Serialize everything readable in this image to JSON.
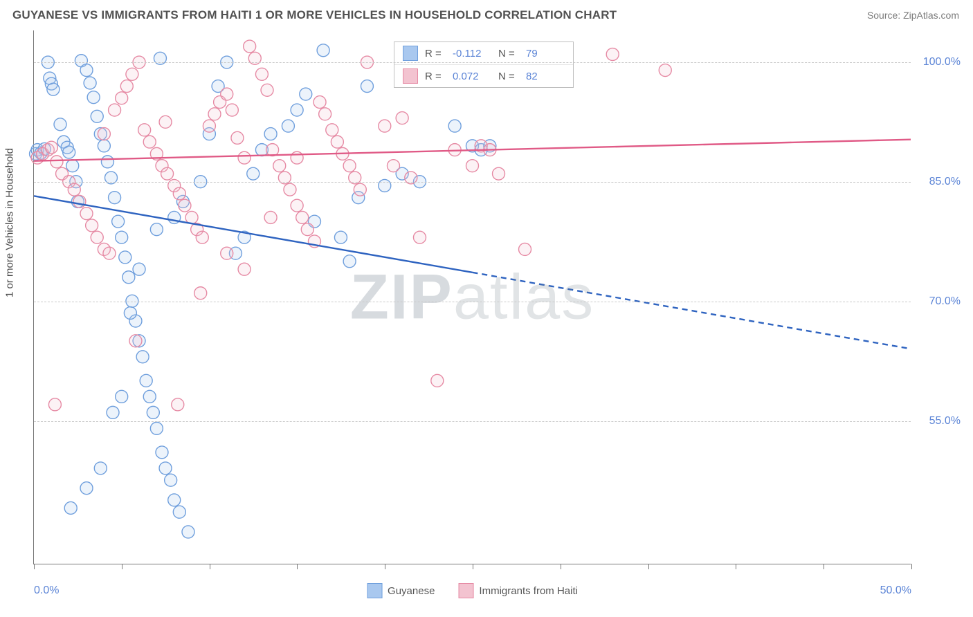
{
  "title": "GUYANESE VS IMMIGRANTS FROM HAITI 1 OR MORE VEHICLES IN HOUSEHOLD CORRELATION CHART",
  "source": "Source: ZipAtlas.com",
  "ylabel": "1 or more Vehicles in Household",
  "watermark_bold": "ZIP",
  "watermark_rest": "atlas",
  "chart": {
    "type": "scatter-with-regression",
    "background_color": "#ffffff",
    "grid_color": "#c9c9c9",
    "axis_color": "#777777",
    "text_color": "#515151",
    "value_color": "#5b84d6",
    "xlim": [
      0,
      50
    ],
    "ylim": [
      37,
      104
    ],
    "y_ticks": [
      55.0,
      70.0,
      85.0,
      100.0
    ],
    "y_tick_labels": [
      "55.0%",
      "70.0%",
      "85.0%",
      "100.0%"
    ],
    "x_ticks": [
      0,
      5,
      10,
      15,
      20,
      25,
      30,
      35,
      40,
      45,
      50
    ],
    "x_tick_labels_shown": {
      "0": "0.0%",
      "50": "50.0%"
    },
    "marker_radius": 9,
    "marker_stroke_width": 1.4,
    "marker_fill_opacity": 0.22,
    "line_width": 2.4,
    "series": [
      {
        "name": "Guyanese",
        "color_fill": "#a9c8ef",
        "color_stroke": "#6f9fdd",
        "line_color": "#2e63c0",
        "R": "-0.112",
        "N": "79",
        "regression": {
          "x1": 0,
          "y1": 83.2,
          "x2": 50,
          "y2": 64.0,
          "solid_until_x": 25
        },
        "points": [
          [
            0.1,
            88.5
          ],
          [
            0.2,
            89.0
          ],
          [
            0.4,
            88.6
          ],
          [
            0.6,
            89.1
          ],
          [
            0.8,
            100.0
          ],
          [
            0.9,
            98.0
          ],
          [
            1.0,
            97.3
          ],
          [
            1.1,
            96.6
          ],
          [
            1.5,
            92.2
          ],
          [
            1.7,
            90.0
          ],
          [
            1.9,
            89.3
          ],
          [
            2.0,
            88.7
          ],
          [
            2.2,
            87.0
          ],
          [
            2.4,
            85.0
          ],
          [
            2.5,
            82.5
          ],
          [
            2.7,
            100.2
          ],
          [
            3.0,
            99.0
          ],
          [
            3.2,
            97.4
          ],
          [
            3.4,
            95.6
          ],
          [
            3.6,
            93.2
          ],
          [
            3.8,
            91.0
          ],
          [
            4.0,
            89.5
          ],
          [
            4.2,
            87.5
          ],
          [
            4.4,
            85.5
          ],
          [
            4.6,
            83.0
          ],
          [
            4.8,
            80.0
          ],
          [
            5.0,
            78.0
          ],
          [
            5.2,
            75.5
          ],
          [
            5.4,
            73.0
          ],
          [
            5.6,
            70.0
          ],
          [
            5.8,
            67.5
          ],
          [
            6.0,
            65.0
          ],
          [
            6.2,
            63.0
          ],
          [
            6.4,
            60.0
          ],
          [
            6.6,
            58.0
          ],
          [
            6.8,
            56.0
          ],
          [
            7.0,
            54.0
          ],
          [
            7.3,
            51.0
          ],
          [
            7.5,
            49.0
          ],
          [
            7.8,
            47.5
          ],
          [
            8.0,
            45.0
          ],
          [
            8.3,
            43.5
          ],
          [
            2.1,
            44.0
          ],
          [
            3.0,
            46.5
          ],
          [
            3.8,
            49.0
          ],
          [
            4.5,
            56.0
          ],
          [
            5.0,
            58.0
          ],
          [
            5.5,
            68.5
          ],
          [
            6.0,
            74.0
          ],
          [
            7.0,
            79.0
          ],
          [
            8.0,
            80.5
          ],
          [
            8.5,
            82.5
          ],
          [
            9.5,
            85.0
          ],
          [
            10.0,
            91.0
          ],
          [
            10.5,
            97.0
          ],
          [
            11.0,
            100.0
          ],
          [
            11.5,
            76.0
          ],
          [
            12.0,
            78.0
          ],
          [
            12.5,
            86.0
          ],
          [
            13.0,
            89.0
          ],
          [
            13.5,
            91.0
          ],
          [
            14.5,
            92.0
          ],
          [
            15.0,
            94.0
          ],
          [
            15.5,
            96.0
          ],
          [
            16.0,
            80.0
          ],
          [
            16.5,
            101.5
          ],
          [
            17.5,
            78.0
          ],
          [
            18.0,
            75.0
          ],
          [
            18.5,
            83.0
          ],
          [
            19.0,
            97.0
          ],
          [
            20.0,
            84.5
          ],
          [
            21.0,
            86.0
          ],
          [
            22.0,
            85.0
          ],
          [
            24.0,
            92.0
          ],
          [
            25.0,
            89.5
          ],
          [
            25.5,
            89.0
          ],
          [
            26.0,
            89.5
          ],
          [
            8.8,
            41.0
          ],
          [
            7.2,
            100.5
          ]
        ]
      },
      {
        "name": "Immigants from Haiti",
        "label": "Immigrants from Haiti",
        "color_fill": "#f3c3d0",
        "color_stroke": "#e68aa4",
        "line_color": "#e05a86",
        "R": "0.072",
        "N": "82",
        "regression": {
          "x1": 0,
          "y1": 87.6,
          "x2": 50,
          "y2": 90.3,
          "solid_until_x": 50
        },
        "points": [
          [
            0.2,
            88.0
          ],
          [
            0.5,
            88.5
          ],
          [
            0.8,
            89.0
          ],
          [
            1.0,
            89.3
          ],
          [
            1.3,
            87.5
          ],
          [
            1.6,
            86.0
          ],
          [
            2.0,
            85.0
          ],
          [
            2.3,
            84.0
          ],
          [
            2.6,
            82.5
          ],
          [
            3.0,
            81.0
          ],
          [
            3.3,
            79.5
          ],
          [
            3.6,
            78.0
          ],
          [
            4.0,
            76.5
          ],
          [
            4.3,
            76.0
          ],
          [
            4.6,
            94.0
          ],
          [
            5.0,
            95.5
          ],
          [
            5.3,
            97.0
          ],
          [
            5.6,
            98.5
          ],
          [
            6.0,
            100.0
          ],
          [
            6.3,
            91.5
          ],
          [
            6.6,
            90.0
          ],
          [
            7.0,
            88.5
          ],
          [
            7.3,
            87.0
          ],
          [
            7.6,
            86.0
          ],
          [
            8.0,
            84.5
          ],
          [
            8.3,
            83.5
          ],
          [
            8.6,
            82.0
          ],
          [
            9.0,
            80.5
          ],
          [
            9.3,
            79.0
          ],
          [
            9.6,
            78.0
          ],
          [
            10.0,
            92.0
          ],
          [
            10.3,
            93.5
          ],
          [
            10.6,
            95.0
          ],
          [
            11.0,
            96.0
          ],
          [
            11.3,
            94.0
          ],
          [
            11.6,
            90.5
          ],
          [
            12.0,
            88.0
          ],
          [
            12.3,
            102.0
          ],
          [
            12.6,
            100.5
          ],
          [
            13.0,
            98.5
          ],
          [
            13.3,
            96.5
          ],
          [
            13.6,
            89.0
          ],
          [
            14.0,
            87.0
          ],
          [
            14.3,
            85.5
          ],
          [
            14.6,
            84.0
          ],
          [
            15.0,
            82.0
          ],
          [
            15.3,
            80.5
          ],
          [
            15.6,
            79.0
          ],
          [
            16.0,
            77.5
          ],
          [
            16.3,
            95.0
          ],
          [
            16.6,
            93.5
          ],
          [
            17.0,
            91.5
          ],
          [
            17.3,
            90.0
          ],
          [
            17.6,
            88.5
          ],
          [
            18.0,
            87.0
          ],
          [
            18.3,
            85.5
          ],
          [
            18.6,
            84.0
          ],
          [
            19.0,
            100.0
          ],
          [
            20.0,
            92.0
          ],
          [
            20.5,
            87.0
          ],
          [
            21.0,
            93.0
          ],
          [
            21.5,
            85.5
          ],
          [
            22.0,
            78.0
          ],
          [
            23.0,
            60.0
          ],
          [
            24.0,
            89.0
          ],
          [
            25.0,
            87.0
          ],
          [
            25.5,
            89.5
          ],
          [
            26.0,
            89.0
          ],
          [
            26.5,
            86.0
          ],
          [
            28.0,
            76.5
          ],
          [
            33.0,
            101.0
          ],
          [
            36.0,
            99.0
          ],
          [
            1.2,
            57.0
          ],
          [
            5.8,
            65.0
          ],
          [
            8.2,
            57.0
          ],
          [
            9.5,
            71.0
          ],
          [
            11.0,
            76.0
          ],
          [
            12.0,
            74.0
          ],
          [
            13.5,
            80.5
          ],
          [
            15.0,
            88.0
          ],
          [
            4.0,
            91.0
          ],
          [
            7.5,
            92.5
          ]
        ]
      }
    ]
  },
  "legend_top": {
    "R_label": "R =",
    "N_label": "N ="
  },
  "legend_bottom": {
    "s1": "Guyanese",
    "s2": "Immigrants from Haiti"
  }
}
